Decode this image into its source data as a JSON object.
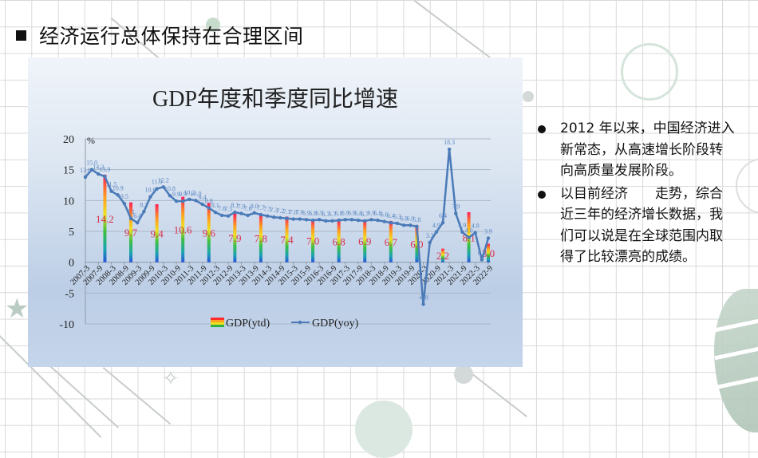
{
  "slide": {
    "title": "经济运行总体保持在合理区间",
    "bullets": [
      {
        "text": "2012 年以来，中国经济进入新常态，从高速增长阶段转向高质量发展阶段。"
      },
      {
        "text": "以目前经济　　走势，综合近三年的经济增长数据，我们可以说是在全球范围内取得了比较漂亮的成绩。"
      }
    ]
  },
  "chart": {
    "title": "GDP年度和季度同比增速",
    "unit_label": "%",
    "legend": {
      "ytd": "GDP(ytd)",
      "yoy": "GDP(yoy)"
    }
  },
  "colors": {
    "line": "#4a7ab8",
    "bar_label": "#d9304a",
    "panel_top": "#f0f4fa",
    "panel_bottom": "#bccee6"
  },
  "chart_data": {
    "type": "bar+line",
    "title": "GDP年度和季度同比增速",
    "xlabel": "",
    "ylabel": "%",
    "ylim": [
      -10,
      20
    ],
    "yticks": [
      -10,
      -5,
      0,
      5,
      10,
      15,
      20
    ],
    "grid": true,
    "legend_position": "bottom",
    "x_tick_labels": [
      "2007-3",
      "2007-9",
      "2008-3",
      "2008-9",
      "2009-3",
      "2009-9",
      "2010-3",
      "2010-9",
      "2011-3",
      "2011-9",
      "2012-3",
      "2012-9",
      "2013-3",
      "2013-9",
      "2014-3",
      "2014-9",
      "2015-3",
      "2015-9",
      "2016-3",
      "2016-9",
      "2017-3",
      "2017-9",
      "2018-3",
      "2018-9",
      "2019-3",
      "2019-9",
      "2020-3",
      "2020-9",
      "2021-3",
      "2021-9",
      "2022-3",
      "2022-9"
    ],
    "series": [
      {
        "name": "GDP(yoy)",
        "type": "line",
        "x": [
          "2007Q1",
          "2007Q2",
          "2007Q3",
          "2007Q4",
          "2008Q1",
          "2008Q2",
          "2008Q3",
          "2008Q4",
          "2009Q1",
          "2009Q2",
          "2009Q3",
          "2009Q4",
          "2010Q1",
          "2010Q2",
          "2010Q3",
          "2010Q4",
          "2011Q1",
          "2011Q2",
          "2011Q3",
          "2011Q4",
          "2012Q1",
          "2012Q2",
          "2012Q3",
          "2012Q4",
          "2013Q1",
          "2013Q2",
          "2013Q3",
          "2013Q4",
          "2014Q1",
          "2014Q2",
          "2014Q3",
          "2014Q4",
          "2015Q1",
          "2015Q2",
          "2015Q3",
          "2015Q4",
          "2016Q1",
          "2016Q2",
          "2016Q3",
          "2016Q4",
          "2017Q1",
          "2017Q2",
          "2017Q3",
          "2017Q4",
          "2018Q1",
          "2018Q2",
          "2018Q3",
          "2018Q4",
          "2019Q1",
          "2019Q2",
          "2019Q3",
          "2019Q4",
          "2020Q1",
          "2020Q2",
          "2020Q3",
          "2020Q4",
          "2021Q1",
          "2021Q2",
          "2021Q3",
          "2021Q4",
          "2022Q1",
          "2022Q2",
          "2022Q3"
        ],
        "values": [
          13.8,
          15.0,
          14.3,
          13.9,
          11.5,
          10.9,
          9.5,
          7.1,
          6.4,
          8.2,
          10.6,
          11.9,
          12.2,
          10.8,
          9.9,
          9.9,
          10.2,
          10.0,
          9.4,
          8.8,
          8.1,
          7.6,
          7.5,
          8.1,
          7.9,
          7.6,
          8.0,
          7.7,
          7.5,
          7.3,
          7.2,
          7.1,
          7.0,
          7.0,
          6.9,
          6.8,
          6.9,
          6.7,
          6.7,
          6.8,
          6.9,
          6.9,
          6.8,
          6.7,
          6.9,
          6.8,
          6.6,
          6.4,
          6.3,
          6.0,
          6.0,
          5.8,
          -6.8,
          3.2,
          4.9,
          6.4,
          18.3,
          7.9,
          4.9,
          4.0,
          4.8,
          0.4,
          3.9
        ]
      },
      {
        "name": "GDP(ytd)",
        "type": "bar",
        "x": [
          "2007",
          "2008",
          "2009",
          "2010",
          "2011",
          "2012",
          "2013",
          "2014",
          "2015",
          "2016",
          "2017",
          "2018",
          "2019",
          "2020",
          "2021",
          "2022Q3"
        ],
        "values": [
          14.2,
          9.7,
          9.4,
          10.6,
          9.6,
          7.9,
          7.8,
          7.4,
          7.0,
          6.8,
          6.9,
          6.7,
          6.0,
          2.2,
          8.1,
          3.0
        ]
      }
    ]
  }
}
